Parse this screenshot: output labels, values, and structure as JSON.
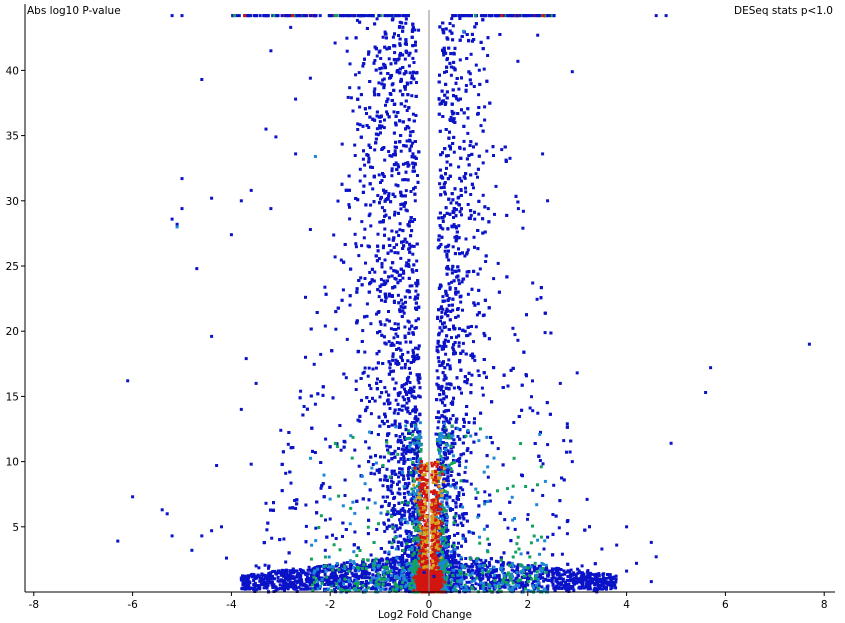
{
  "chart_data": {
    "type": "scatter",
    "subtype": "volcano-density",
    "title": "DESeq stats p<1.0",
    "xlabel": "Log2 Fold Change",
    "ylabel": "Abs log10 P-value",
    "xlim": [
      -8.2,
      8.3
    ],
    "ylim": [
      0,
      44.5
    ],
    "xticks": [
      -8,
      -6,
      -4,
      -2,
      0,
      2,
      4,
      6,
      8
    ],
    "yticks": [
      5,
      10,
      15,
      20,
      25,
      30,
      35,
      40
    ],
    "vertical_reference_line": 0,
    "grid": false,
    "legend": "none",
    "density_colors": [
      "#0b13c8",
      "#1c87d8",
      "#12a35b",
      "#d8a21c",
      "#d3140f"
    ],
    "points": [
      [
        -6.3,
        3.9
      ],
      [
        -6.1,
        16.2
      ],
      [
        -6.0,
        7.3
      ],
      [
        -5.4,
        6.3
      ],
      [
        -5.3,
        6.0
      ],
      [
        -5.1,
        28.2
      ],
      [
        -5.2,
        28.6
      ],
      [
        -5.0,
        29.4
      ],
      [
        -5.0,
        31.7
      ],
      [
        -5.2,
        44.2
      ],
      [
        -5.0,
        44.2
      ],
      [
        -4.7,
        24.8
      ],
      [
        -4.6,
        39.3
      ],
      [
        -4.4,
        30.2
      ],
      [
        -4.4,
        4.7
      ],
      [
        -4.2,
        5.0
      ],
      [
        -4.4,
        19.6
      ],
      [
        -4.0,
        27.4
      ],
      [
        -3.8,
        30.0
      ],
      [
        -3.7,
        17.9
      ],
      [
        -3.6,
        30.8
      ],
      [
        -3.5,
        16.0
      ],
      [
        -3.3,
        35.5
      ],
      [
        -3.2,
        29.4
      ],
      [
        -3.1,
        34.9
      ],
      [
        -3.2,
        41.5
      ],
      [
        -2.8,
        43.3
      ],
      [
        -2.7,
        37.8
      ],
      [
        -2.7,
        33.6
      ],
      [
        -2.5,
        18.0
      ],
      [
        -2.4,
        39.4
      ],
      [
        -2.4,
        27.8
      ],
      [
        -2.3,
        14.4
      ],
      [
        -1.9,
        25.7
      ],
      [
        -1.6,
        22.0
      ],
      [
        -1.3,
        18.4
      ],
      [
        -1.1,
        33.9
      ],
      [
        -1.6,
        40.5
      ],
      [
        -1.9,
        42.1
      ],
      [
        -2.1,
        20.4
      ],
      [
        -2.6,
        15.4
      ],
      [
        -2.9,
        9.1
      ],
      [
        -3.3,
        6.8
      ],
      [
        -3.6,
        9.8
      ],
      [
        -4.3,
        9.7
      ],
      [
        -4.6,
        4.3
      ],
      [
        -2.0,
        5.6
      ],
      [
        -2.7,
        6.4
      ],
      [
        -1.7,
        11.5
      ],
      [
        -1.4,
        13.1
      ],
      [
        -1.7,
        7.4
      ],
      [
        -0.8,
        39.4
      ],
      [
        -0.6,
        43.3
      ],
      [
        -0.9,
        36.2
      ],
      [
        0.5,
        40.2
      ],
      [
        0.8,
        42.3
      ],
      [
        1.0,
        36.7
      ],
      [
        0.6,
        32.6
      ],
      [
        0.9,
        31.0
      ],
      [
        1.2,
        29.4
      ],
      [
        1.4,
        25.2
      ],
      [
        1.9,
        27.9
      ],
      [
        2.3,
        33.6
      ],
      [
        2.4,
        30.0
      ],
      [
        2.1,
        23.7
      ],
      [
        1.8,
        19.3
      ],
      [
        1.6,
        15.8
      ],
      [
        2.1,
        13.9
      ],
      [
        2.4,
        11.3
      ],
      [
        1.4,
        11.0
      ],
      [
        1.2,
        8.8
      ],
      [
        2.1,
        7.8
      ],
      [
        2.8,
        12.9
      ],
      [
        2.9,
        10.0
      ],
      [
        2.8,
        5.4
      ],
      [
        3.5,
        3.3
      ],
      [
        4.0,
        5.0
      ],
      [
        4.2,
        2.2
      ],
      [
        4.5,
        3.8
      ],
      [
        4.6,
        2.7
      ],
      [
        4.5,
        0.8
      ],
      [
        4.6,
        44.2
      ],
      [
        4.8,
        44.2
      ],
      [
        4.9,
        11.4
      ],
      [
        5.6,
        15.3
      ],
      [
        5.7,
        17.2
      ],
      [
        7.7,
        19.0
      ],
      [
        2.9,
        39.9
      ],
      [
        2.2,
        42.7
      ],
      [
        1.8,
        40.7
      ],
      [
        3.0,
        16.8
      ],
      [
        3.2,
        7.1
      ],
      [
        3.8,
        3.6
      ],
      [
        4.0,
        1.6
      ],
      [
        2.7,
        2.9
      ],
      [
        0.7,
        24.0
      ],
      [
        1.1,
        21.2
      ],
      [
        0.4,
        17.8
      ],
      [
        1.1,
        15.1
      ],
      [
        0.7,
        10.6
      ],
      [
        -0.7,
        22.3
      ],
      [
        -0.5,
        15.9
      ],
      [
        -1.0,
        9.4
      ],
      [
        -0.9,
        28.8
      ],
      [
        -1.3,
        31.9
      ],
      [
        -0.3,
        26.5
      ],
      [
        -0.4,
        20.7
      ],
      [
        -1.2,
        24.5
      ],
      [
        -2.3,
        10.7
      ],
      [
        -3.0,
        12.4
      ],
      [
        -3.8,
        14.0
      ],
      [
        -2.5,
        22.6
      ],
      [
        1.6,
        4.9
      ],
      [
        2.0,
        3.0
      ],
      [
        2.4,
        4.2
      ],
      [
        3.1,
        2.0
      ],
      [
        3.4,
        1.1
      ],
      [
        2.6,
        1.3
      ],
      [
        -2.9,
        2.3
      ],
      [
        -3.5,
        2.0
      ],
      [
        -4.1,
        2.6
      ],
      [
        -4.8,
        3.2
      ],
      [
        -5.2,
        4.3
      ],
      [
        -2.1,
        3.2
      ],
      [
        -1.5,
        4.6
      ],
      [
        -0.9,
        5.2
      ],
      [
        -0.6,
        7.9
      ],
      [
        0.3,
        5.9
      ],
      [
        0.6,
        7.1
      ],
      [
        0.9,
        4.5
      ],
      [
        -0.3,
        10.9
      ],
      [
        0.3,
        12.7
      ],
      [
        -0.2,
        3.4
      ],
      [
        0.2,
        2.8
      ],
      [
        -0.1,
        1.5
      ],
      [
        0.1,
        1.2
      ],
      [
        -0.4,
        0.9
      ],
      [
        0.4,
        0.7
      ],
      [
        -0.7,
        1.8
      ],
      [
        0.8,
        1.6
      ],
      [
        -1.3,
        1.1
      ],
      [
        1.2,
        1.0
      ],
      [
        -2.0,
        0.6
      ],
      [
        1.9,
        0.5
      ]
    ]
  }
}
